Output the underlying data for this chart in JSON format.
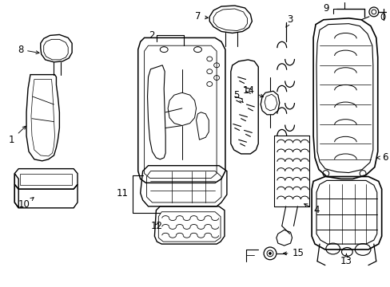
{
  "background_color": "#ffffff",
  "figsize": [
    4.89,
    3.6
  ],
  "dpi": 100,
  "text_color": "#000000",
  "line_color": "#000000",
  "font_size": 8.5
}
